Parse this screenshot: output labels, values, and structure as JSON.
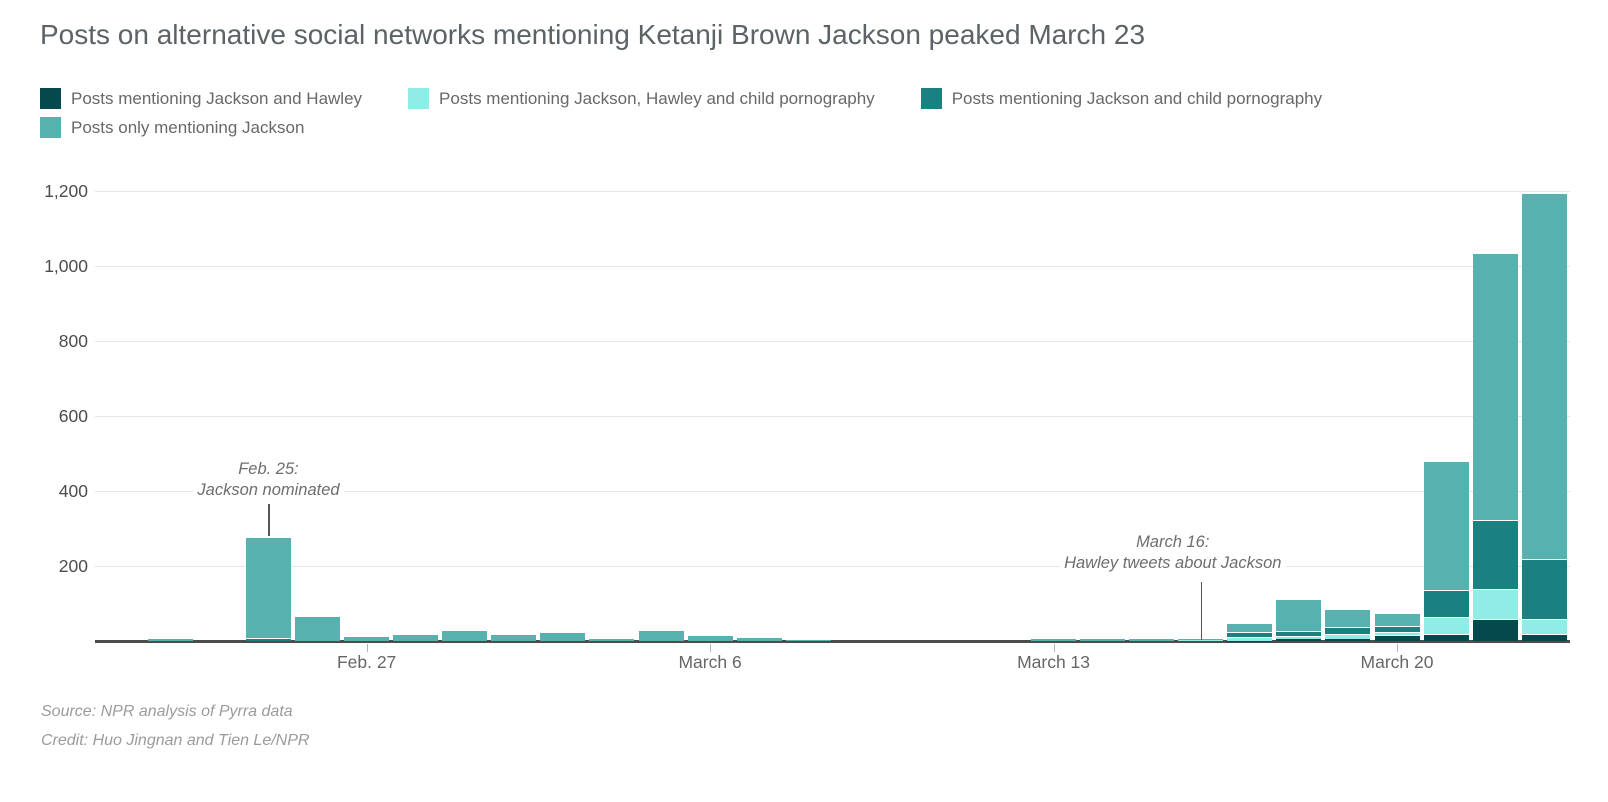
{
  "page": {
    "title": "Posts on alternative social networks mentioning Ketanji Brown Jackson peaked March 23"
  },
  "footer": {
    "source": "Source: NPR analysis of Pyrra data",
    "credit": "Credit: Huo Jingnan and Tien Le/NPR"
  },
  "chart_data": {
    "type": "bar",
    "stacked": true,
    "title": "Posts on alternative social networks mentioning Ketanji Brown Jackson peaked March 23",
    "legend_position": "top",
    "grid": "horizontal",
    "categories": [
      "Feb. 22",
      "Feb. 23",
      "Feb. 24",
      "Feb. 25",
      "Feb. 26",
      "Feb. 27",
      "Feb. 28",
      "March 1",
      "March 2",
      "March 3",
      "March 4",
      "March 5",
      "March 6",
      "March 7",
      "March 8",
      "March 9",
      "March 10",
      "March 11",
      "March 12",
      "March 13",
      "March 14",
      "March 15",
      "March 16",
      "March 17",
      "March 18",
      "March 19",
      "March 20",
      "March 21",
      "March 22",
      "March 23"
    ],
    "series": [
      {
        "name": "Posts mentioning Jackson and Hawley",
        "color": "#05494d",
        "values": [
          0,
          0,
          0,
          0,
          0,
          0,
          0,
          0,
          0,
          0,
          0,
          0,
          0,
          0,
          0,
          0,
          0,
          0,
          0,
          0,
          0,
          0,
          0,
          1,
          5,
          5,
          16,
          19,
          59,
          19
        ]
      },
      {
        "name": "Posts mentioning Jackson, Hawley and child pornography",
        "color": "#90ece5",
        "values": [
          0,
          0,
          0,
          0,
          0,
          0,
          0,
          0,
          0,
          0,
          0,
          0,
          0,
          0,
          0,
          0,
          0,
          0,
          0,
          0,
          0,
          0,
          2,
          10,
          9,
          13,
          8,
          45,
          80,
          40
        ]
      },
      {
        "name": "Posts mentioning Jackson and child pornography",
        "color": "#1a8080",
        "values": [
          0,
          0,
          0,
          9,
          0,
          0,
          0,
          0,
          0,
          0,
          0,
          0,
          0,
          0,
          0,
          0,
          0,
          0,
          0,
          0,
          0,
          0,
          0,
          12,
          13,
          19,
          16,
          72,
          184,
          160
        ]
      },
      {
        "name": "Posts only mentioning Jackson",
        "color": "#57b2af",
        "values": [
          0,
          8,
          0,
          268,
          67,
          13,
          19,
          29,
          19,
          24,
          8,
          29,
          16,
          11,
          4,
          0,
          0,
          0,
          0,
          8,
          5,
          5,
          4,
          25,
          85,
          48,
          35,
          344,
          712,
          976
        ]
      }
    ],
    "y_axis": {
      "range": [
        0,
        1200
      ],
      "ticks": [
        {
          "value": 200,
          "label": "200"
        },
        {
          "value": 400,
          "label": "400"
        },
        {
          "value": 600,
          "label": "600"
        },
        {
          "value": 800,
          "label": "800"
        },
        {
          "value": 1000,
          "label": "1,000"
        },
        {
          "value": 1200,
          "label": "1,200"
        }
      ]
    },
    "x_axis": {
      "ticks": [
        {
          "index": 5,
          "label": "Feb. 27"
        },
        {
          "index": 12,
          "label": "March 6"
        },
        {
          "index": 19,
          "label": "March 13"
        },
        {
          "index": 26,
          "label": "March 20"
        }
      ]
    },
    "annotations": [
      {
        "index": 3,
        "lines": [
          "Feb. 25:",
          "Jackson nominated"
        ]
      },
      {
        "index": 22,
        "lines": [
          "March 16:",
          "Hawley tweets about Jackson"
        ]
      }
    ]
  }
}
